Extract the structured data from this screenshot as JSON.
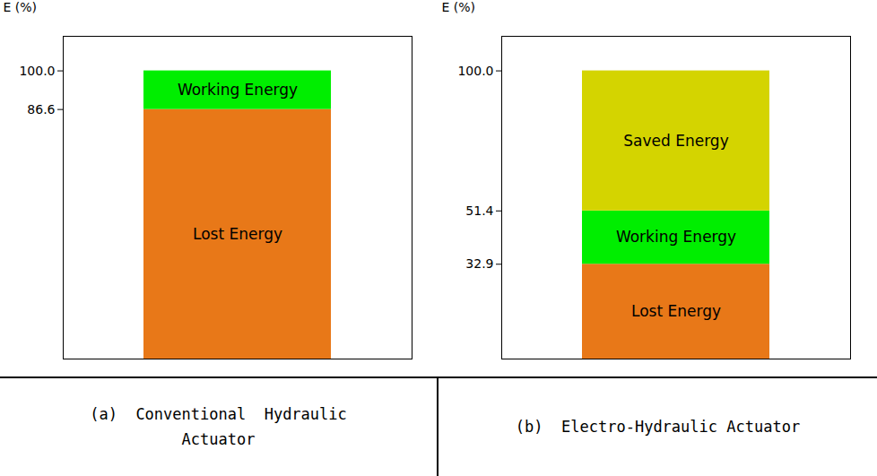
{
  "chart_data": [
    {
      "type": "bar",
      "stacked": true,
      "title": "(a)  Conventional  Hydraulic\nActuator",
      "ylabel": "E (%)",
      "categories": [
        null
      ],
      "series": [
        {
          "name": "Lost Energy",
          "color": "#E87818",
          "values": [
            86.6
          ]
        },
        {
          "name": "Working Energy",
          "color": "#00EE00",
          "values": [
            13.4
          ]
        }
      ],
      "ylim": [
        0,
        112
      ],
      "yticks": [
        86.6,
        {
          "value": 100.0,
          "label": "100.0"
        }
      ],
      "tick_labels": "y"
    },
    {
      "type": "bar",
      "stacked": true,
      "title": "(b)  Electro-Hydraulic Actuator",
      "ylabel": "E (%)",
      "categories": [
        null
      ],
      "series": [
        {
          "name": "Lost Energy",
          "color": "#E87818",
          "values": [
            32.9
          ]
        },
        {
          "name": "Working Energy",
          "color": "#00EE00",
          "values": [
            18.5
          ]
        },
        {
          "name": "Saved Energy",
          "color": "#D4D400",
          "values": [
            48.6
          ]
        }
      ],
      "ylim": [
        0,
        112
      ],
      "yticks": [
        32.9,
        51.4,
        {
          "value": 100.0,
          "label": "100.0"
        }
      ],
      "tick_labels": "y"
    }
  ]
}
